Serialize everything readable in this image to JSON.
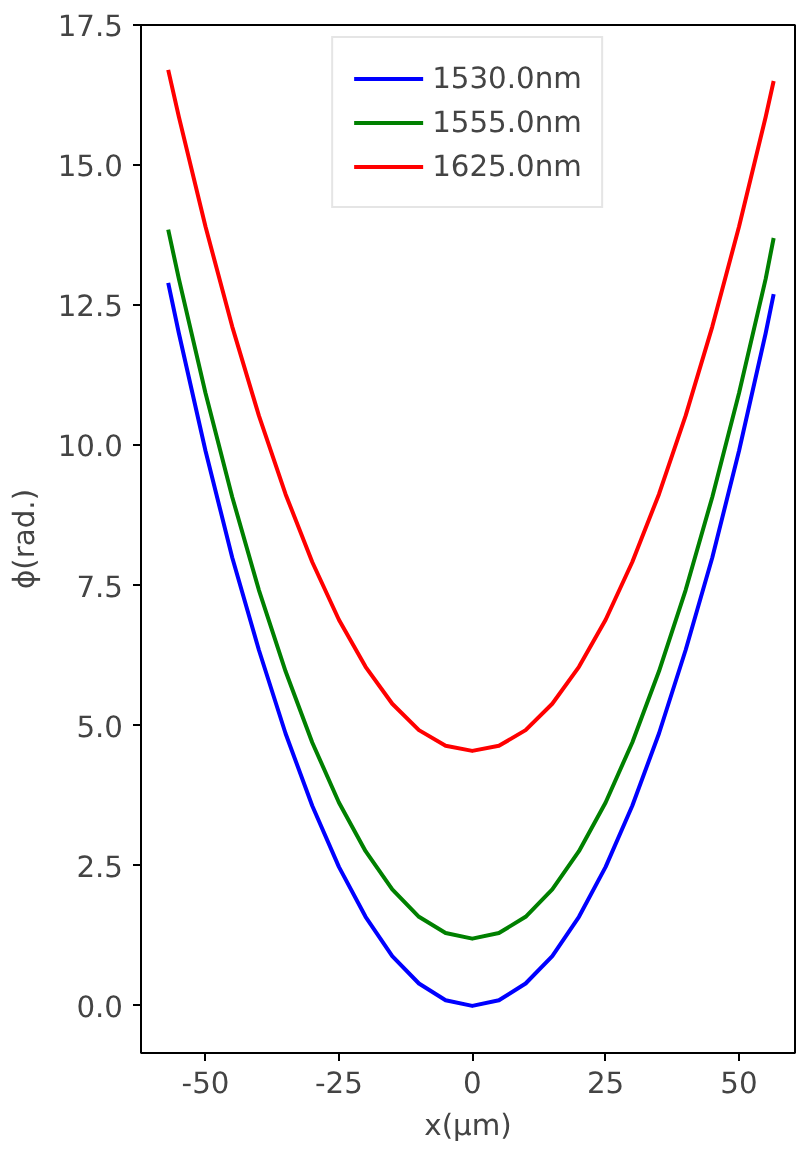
{
  "chart_data": {
    "type": "line",
    "xlabel": "x(μm)",
    "ylabel": "ϕ(rad.)",
    "x": [
      -57,
      -55,
      -50,
      -45,
      -40,
      -35,
      -30,
      -25,
      -20,
      -15,
      -10,
      -5,
      0,
      5,
      10,
      15,
      20,
      25,
      30,
      35,
      40,
      45,
      50,
      55,
      56.5
    ],
    "series": [
      {
        "name": "1530.0nm",
        "color": "#0000ff",
        "values": [
          12.9,
          12.0,
          9.9,
          8.0,
          6.35,
          4.86,
          3.57,
          2.48,
          1.59,
          0.89,
          0.4,
          0.1,
          0.0,
          0.1,
          0.4,
          0.89,
          1.59,
          2.48,
          3.57,
          4.86,
          6.35,
          8.0,
          9.9,
          12.0,
          12.7
        ]
      },
      {
        "name": "1555.0nm",
        "color": "#008000",
        "values": [
          13.85,
          12.97,
          10.93,
          9.08,
          7.42,
          5.97,
          4.7,
          3.63,
          2.76,
          2.08,
          1.59,
          1.3,
          1.2,
          1.3,
          1.59,
          2.08,
          2.76,
          3.63,
          4.7,
          5.97,
          7.42,
          9.08,
          10.93,
          12.97,
          13.7
        ]
      },
      {
        "name": "1625.0nm",
        "color": "#ff0000",
        "values": [
          16.7,
          15.86,
          13.9,
          12.12,
          10.53,
          9.13,
          7.92,
          6.89,
          6.05,
          5.39,
          4.92,
          4.64,
          4.55,
          4.64,
          4.92,
          5.39,
          6.05,
          6.89,
          7.92,
          9.13,
          10.53,
          12.12,
          13.9,
          15.86,
          16.5
        ]
      }
    ],
    "xlim": [
      -62.1,
      60.5
    ],
    "ylim": [
      -0.84,
      17.5
    ],
    "xticks": [
      -50,
      -25,
      0,
      25,
      50
    ],
    "yticks": [
      {
        "value": 0,
        "label": "0.0"
      },
      {
        "value": 2.5,
        "label": "2.5"
      },
      {
        "value": 5,
        "label": "5.0"
      },
      {
        "value": 7.5,
        "label": "7.5"
      },
      {
        "value": 10,
        "label": "10.0"
      },
      {
        "value": 12.5,
        "label": "12.5"
      },
      {
        "value": 15,
        "label": "15.0"
      },
      {
        "value": 17.5,
        "label": "17.5"
      }
    ],
    "legend": "top",
    "grid": false
  }
}
